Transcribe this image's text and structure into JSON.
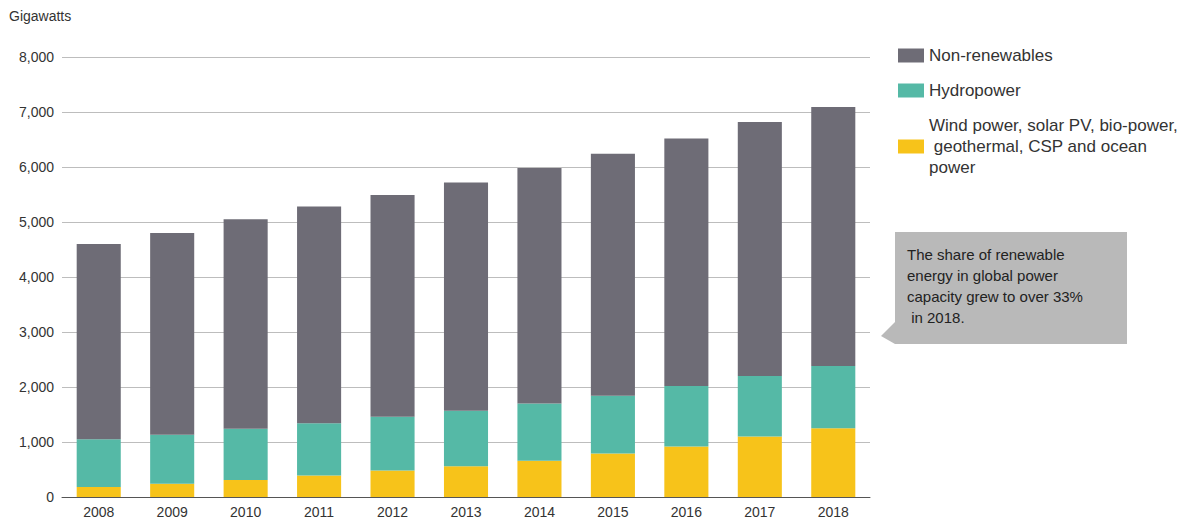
{
  "chart_data": {
    "type": "bar",
    "y_label": "Gigawatts",
    "categories": [
      "2008",
      "2009",
      "2010",
      "2011",
      "2012",
      "2013",
      "2014",
      "2015",
      "2016",
      "2017",
      "2018"
    ],
    "series": [
      {
        "name": "Wind power, solar PV, bio-power, geothermal, CSP and ocean power",
        "color": "#f7c31a",
        "values": [
          180,
          240,
          310,
          390,
          480,
          560,
          660,
          790,
          920,
          1100,
          1250
        ]
      },
      {
        "name": "Hydropower",
        "color": "#55b9a6",
        "values": [
          870,
          890,
          930,
          950,
          980,
          1010,
          1040,
          1050,
          1100,
          1100,
          1130
        ]
      },
      {
        "name": "Non-renewables",
        "color": "#6e6c76",
        "values": [
          3550,
          3670,
          3810,
          3940,
          4030,
          4150,
          4280,
          4400,
          4500,
          4620,
          4710
        ]
      }
    ],
    "stacked": true,
    "ylim": [
      0,
      8000
    ],
    "yticks": [
      0,
      {
        "value": 1000,
        "label": "1,000"
      },
      {
        "value": 2000,
        "label": "2,000"
      },
      {
        "value": 3000,
        "label": "3,000"
      },
      {
        "value": 4000,
        "label": "4,000"
      },
      {
        "value": 5000,
        "label": "5,000"
      },
      {
        "value": 6000,
        "label": "6,000"
      },
      {
        "value": 7000,
        "label": "7,000"
      },
      {
        "value": 8000,
        "label": "8,000"
      }
    ],
    "grid": true,
    "legend": "right",
    "annotation": "The share of renewable energy in global power capacity grew to over 33% in 2018."
  }
}
